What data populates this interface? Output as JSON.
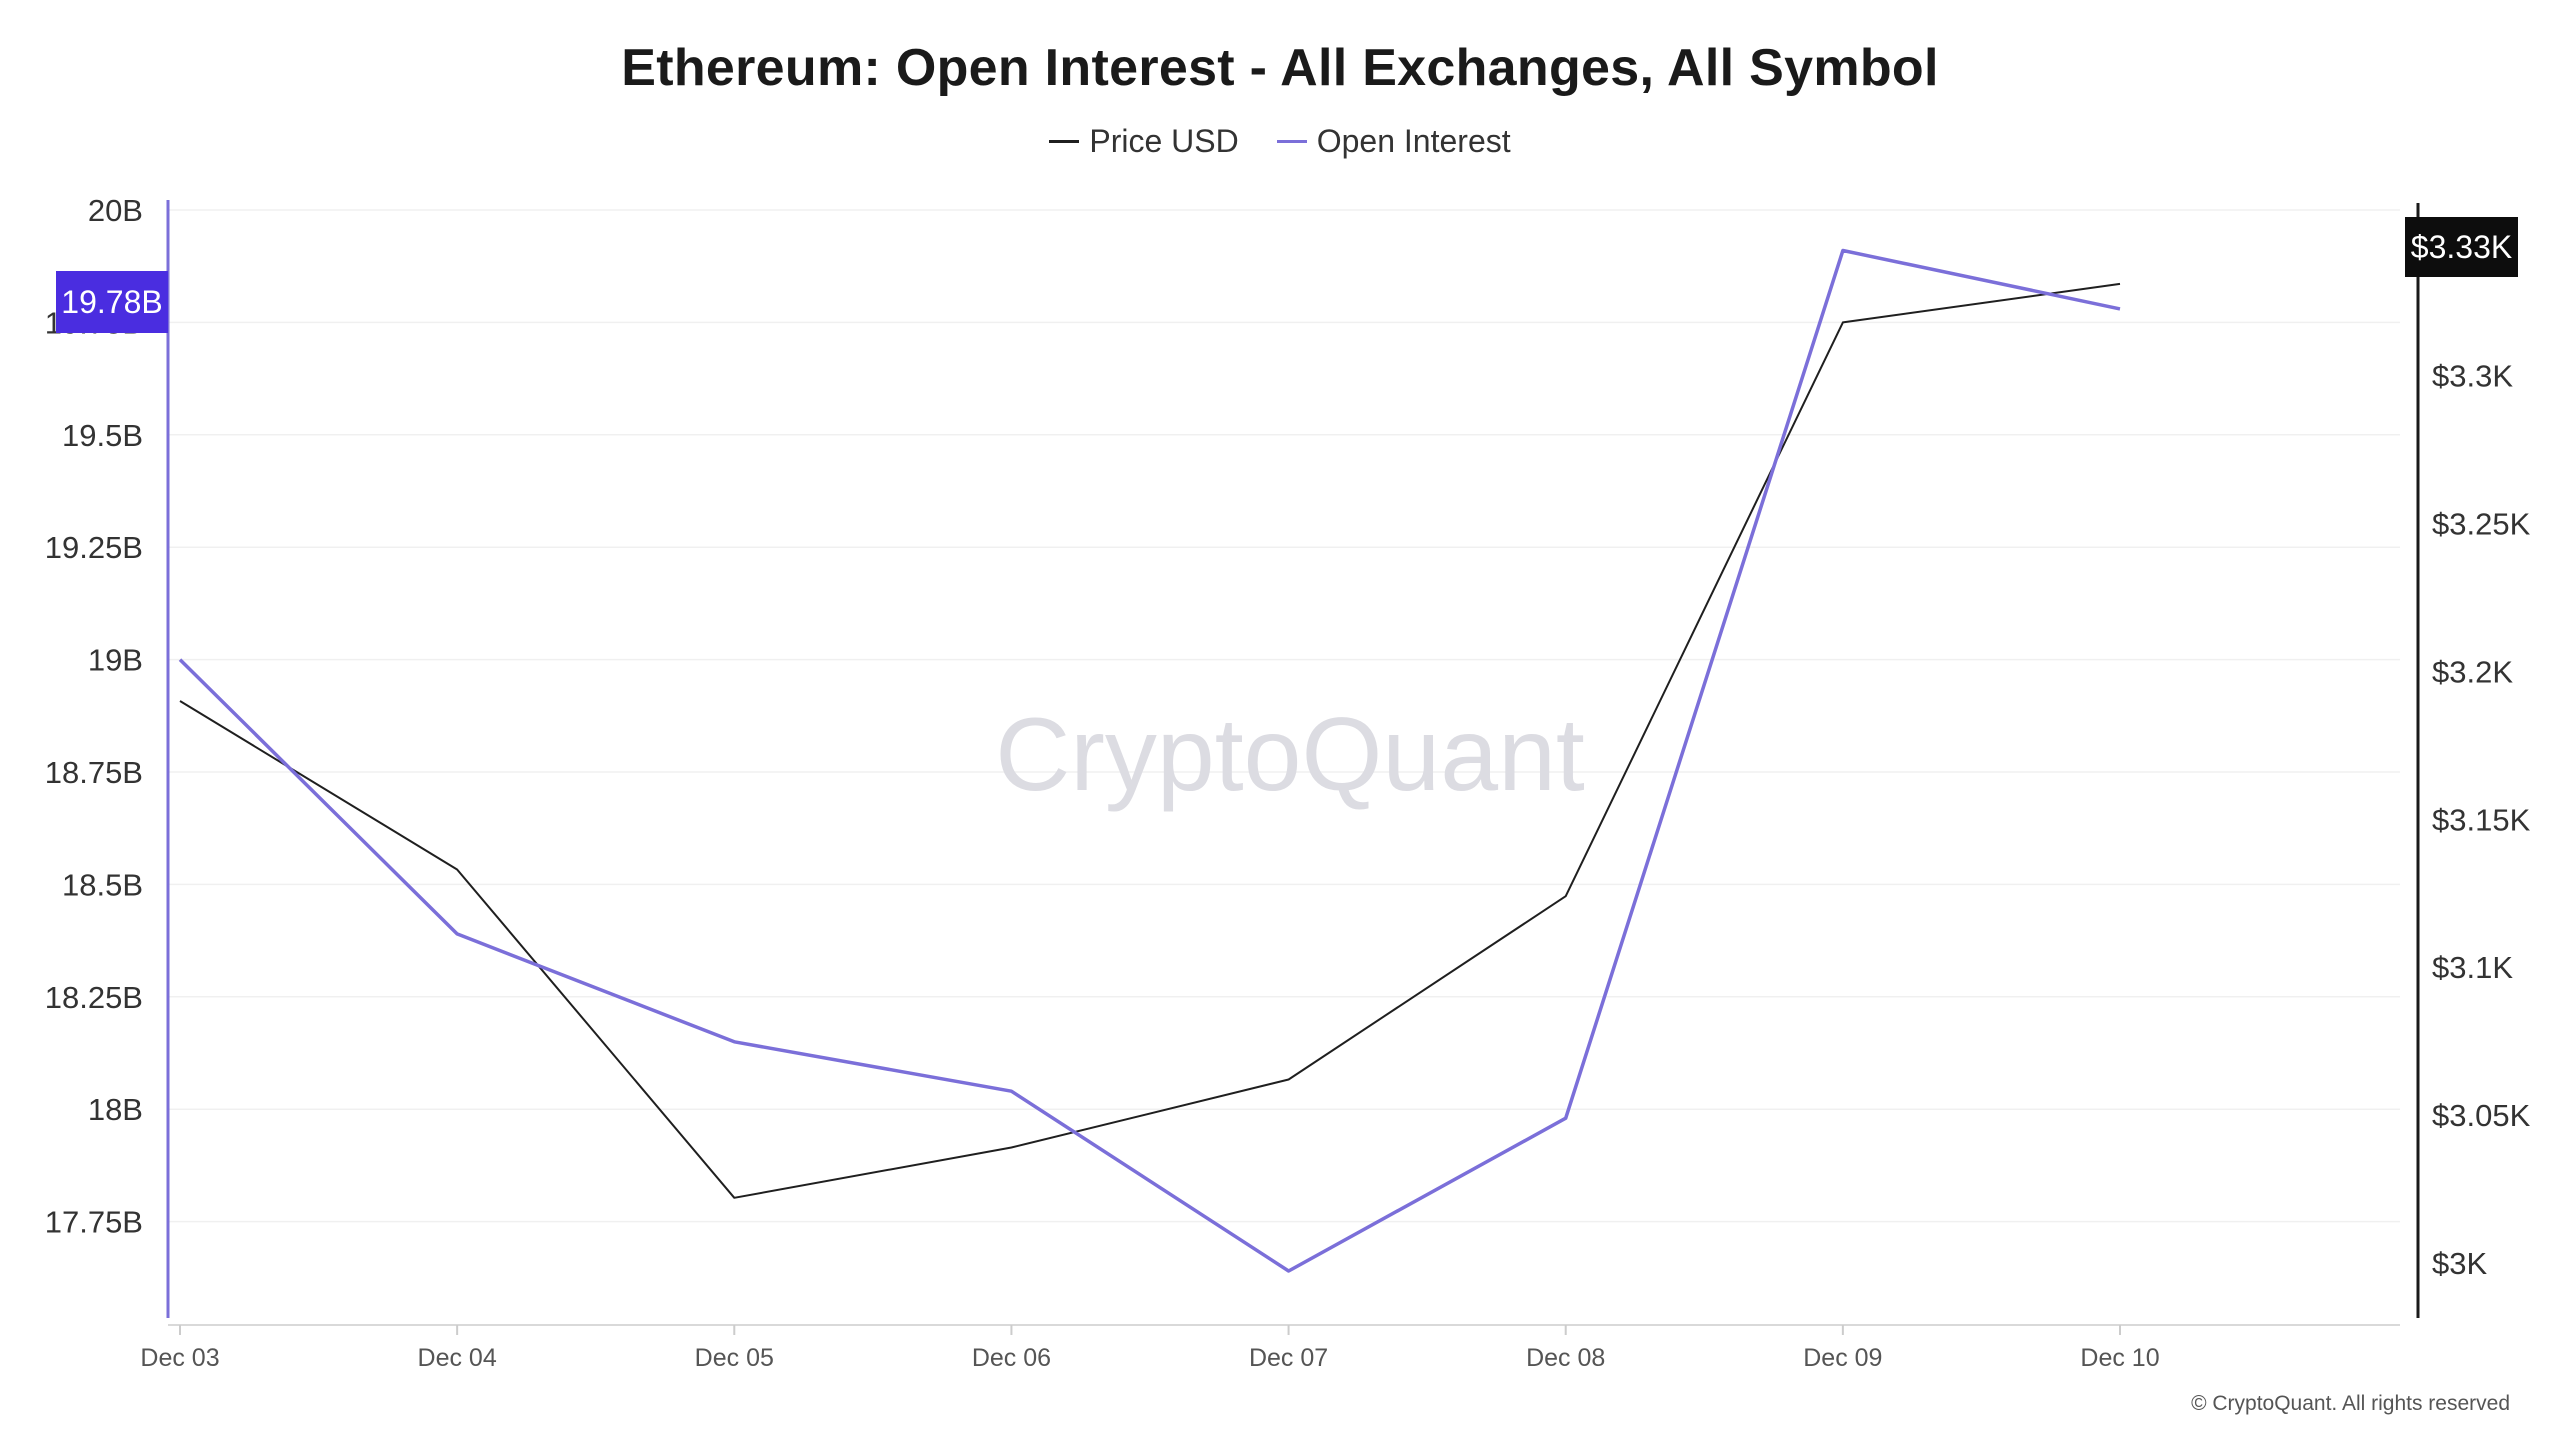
{
  "chart_data": {
    "type": "line",
    "title": "Ethereum: Open Interest - All Exchanges, All Symbol",
    "categories": [
      "Dec 03",
      "Dec 04",
      "Dec 05",
      "Dec 06",
      "Dec 07",
      "Dec 08",
      "Dec 09",
      "Dec 10"
    ],
    "series": [
      {
        "name": "Price USD",
        "axis": "right",
        "color": "#1f1f1f",
        "values": [
          3190,
          3133,
          3022,
          3039,
          3062,
          3124,
          3318,
          3331
        ]
      },
      {
        "name": "Open Interest",
        "axis": "left",
        "color": "#7b6fd9",
        "values": [
          19000000000,
          18390000000,
          18150000000,
          18040000000,
          17640000000,
          17980000000,
          19910000000,
          19780000000
        ]
      }
    ],
    "y_left": {
      "ticks": [
        17750000000,
        18000000000,
        18250000000,
        18500000000,
        18750000000,
        19000000000,
        19250000000,
        19500000000,
        19750000000,
        20000000000
      ],
      "tick_labels": [
        "17.75B",
        "18B",
        "18.25B",
        "18.5B",
        "18.75B",
        "19B",
        "19.25B",
        "19.5B",
        "19.75B",
        "20B"
      ],
      "range": [
        17520000000,
        20000000000
      ]
    },
    "y_right": {
      "ticks": [
        3000,
        3050,
        3100,
        3150,
        3200,
        3250,
        3300
      ],
      "tick_labels": [
        "$3K",
        "$3.05K",
        "$3.1K",
        "$3.15K",
        "$3.2K",
        "$3.25K",
        "$3.3K"
      ],
      "range": [
        2979,
        3356
      ]
    },
    "current_value_left": "19.78B",
    "current_value_right": "$3.33K",
    "grid": true,
    "legend_position": "top-center"
  },
  "watermark": "CryptoQuant",
  "copyright": "© CryptoQuant. All rights reserved",
  "colors": {
    "price": "#1f1f1f",
    "open_interest": "#7b6fd9",
    "left_axis": "#7b6fd9",
    "left_badge": "#4a2de0",
    "right_badge": "#0d0d0d",
    "grid": "#f0f0f0"
  }
}
